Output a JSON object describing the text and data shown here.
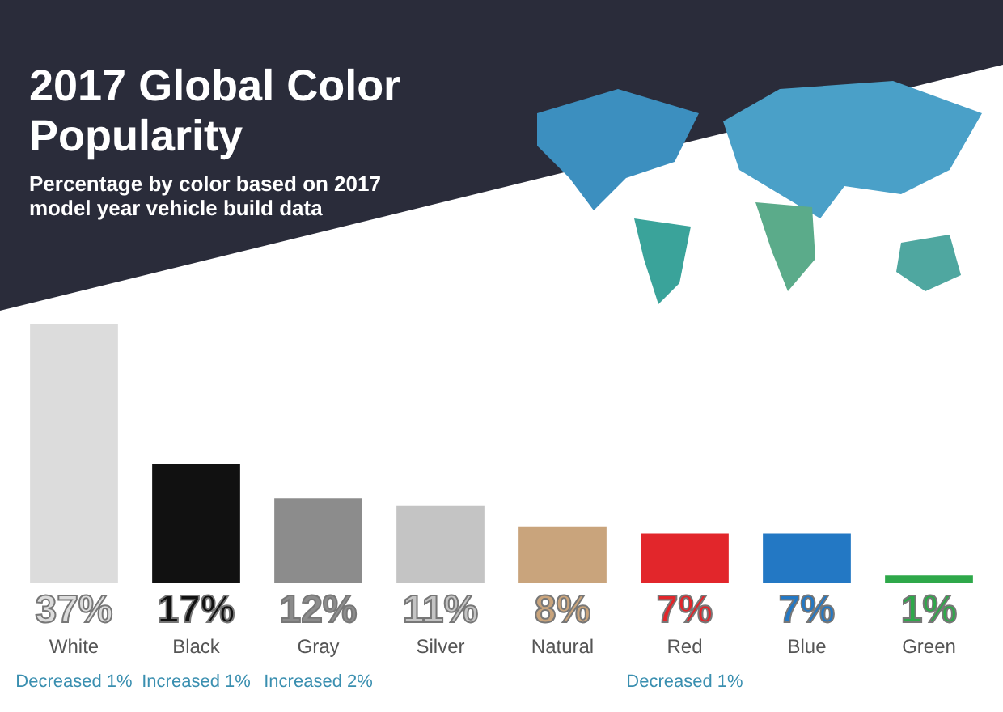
{
  "chart_data": {
    "type": "bar",
    "title": "2017 Global Color Popularity",
    "subtitle": "Percentage by color based on 2017 model year vehicle build data",
    "categories": [
      "White",
      "Black",
      "Gray",
      "Silver",
      "Natural",
      "Red",
      "Blue",
      "Green"
    ],
    "values": [
      37,
      17,
      12,
      11,
      8,
      7,
      7,
      1
    ],
    "colors": [
      "#dcdcdc",
      "#111111",
      "#8c8c8c",
      "#c4c4c4",
      "#c9a47c",
      "#e2262b",
      "#2378c4",
      "#2ea84a"
    ],
    "value_labels": [
      "37%",
      "17%",
      "12%",
      "11%",
      "8%",
      "7%",
      "7%",
      "1%"
    ],
    "annotations": [
      "Decreased 1%",
      "Increased 1%",
      "Increased 2%",
      "Decreased 1%"
    ],
    "legend": false
  }
}
